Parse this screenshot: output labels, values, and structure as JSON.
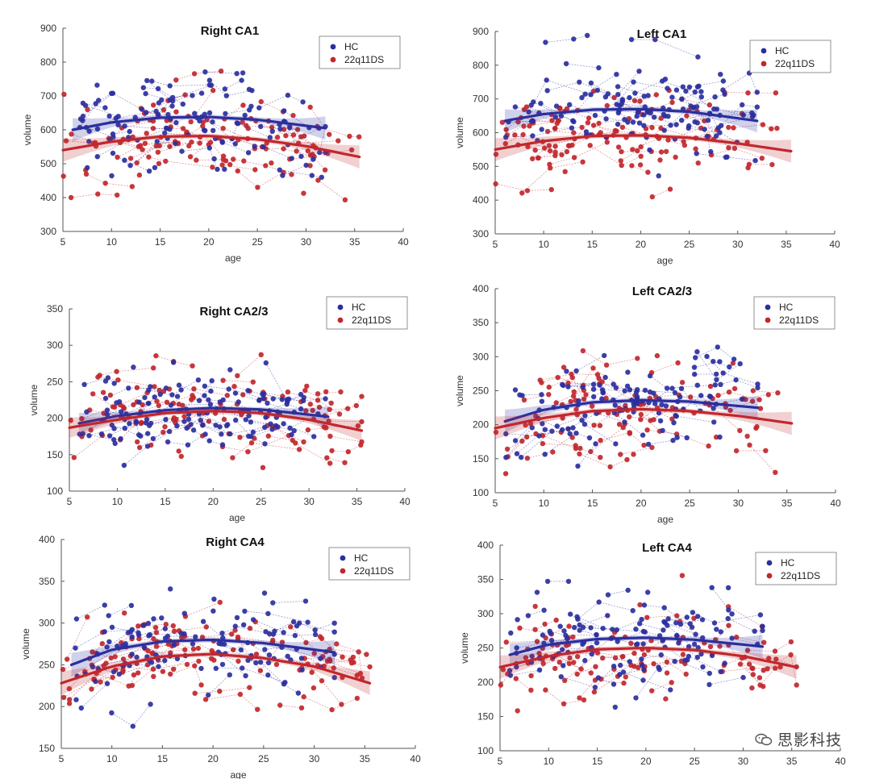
{
  "colors": {
    "HC": "#2b2f9e",
    "22q11DS": "#c1272d",
    "axis": "#555555"
  },
  "watermark": "思影科技",
  "chart_data": [
    {
      "type": "scatter",
      "title": "Right CA1",
      "xlabel": "age",
      "ylabel": "volume",
      "xlim": [
        5,
        40
      ],
      "ylim": [
        300,
        900
      ],
      "xticks": [
        "5",
        "10",
        "15",
        "20",
        "25",
        "30",
        "35",
        "40"
      ],
      "yticks": [
        "300",
        "400",
        "500",
        "600",
        "700",
        "800",
        "900"
      ],
      "legend": [
        "HC",
        "22q11DS"
      ],
      "legend_position": "top-right",
      "series": [
        {
          "name": "HC",
          "fit": {
            "x": [
              6,
              10,
              15,
              20,
              25,
              32
            ],
            "y": [
              600,
              622,
              636,
              638,
              630,
              605
            ]
          }
        },
        {
          "name": "22q11DS",
          "fit": {
            "x": [
              5,
              10,
              15,
              20,
              25,
              30,
              35.5
            ],
            "y": [
              540,
              565,
              580,
              582,
              572,
              552,
              520
            ]
          }
        }
      ]
    },
    {
      "type": "scatter",
      "title": "Left CA1",
      "xlabel": "age",
      "ylabel": "volume",
      "xlim": [
        5,
        40
      ],
      "ylim": [
        300,
        900
      ],
      "xticks": [
        "5",
        "10",
        "15",
        "20",
        "25",
        "30",
        "35",
        "40"
      ],
      "yticks": [
        "300",
        "400",
        "500",
        "600",
        "700",
        "800",
        "900"
      ],
      "legend": [
        "HC",
        "22q11DS"
      ],
      "legend_position": "top-right",
      "series": [
        {
          "name": "HC",
          "fit": {
            "x": [
              6,
              10,
              15,
              20,
              25,
              32
            ],
            "y": [
              635,
              655,
              668,
              670,
              662,
              635
            ]
          }
        },
        {
          "name": "22q11DS",
          "fit": {
            "x": [
              5,
              10,
              15,
              20,
              25,
              30,
              35.5
            ],
            "y": [
              550,
              575,
              590,
              592,
              585,
              568,
              545
            ]
          }
        }
      ]
    },
    {
      "type": "scatter",
      "title": "Right CA2/3",
      "xlabel": "age",
      "ylabel": "volume",
      "xlim": [
        5,
        40
      ],
      "ylim": [
        100,
        350
      ],
      "xticks": [
        "5",
        "10",
        "15",
        "20",
        "25",
        "30",
        "35",
        "40"
      ],
      "yticks": [
        "100",
        "150",
        "200",
        "250",
        "300",
        "350"
      ],
      "legend": [
        "HC",
        "22q11DS"
      ],
      "legend_position": "top-right",
      "series": [
        {
          "name": "HC",
          "fit": {
            "x": [
              6,
              10,
              15,
              20,
              25,
              32
            ],
            "y": [
              193,
              203,
              211,
              214,
              212,
              202
            ]
          }
        },
        {
          "name": "22q11DS",
          "fit": {
            "x": [
              5,
              10,
              15,
              20,
              25,
              30,
              35.5
            ],
            "y": [
              187,
              198,
              207,
              210,
              207,
              198,
              183
            ]
          }
        }
      ]
    },
    {
      "type": "scatter",
      "title": "Left CA2/3",
      "xlabel": "age",
      "ylabel": "volume",
      "xlim": [
        5,
        40
      ],
      "ylim": [
        100,
        400
      ],
      "xticks": [
        "5",
        "10",
        "15",
        "20",
        "25",
        "30",
        "35",
        "40"
      ],
      "yticks": [
        "100",
        "150",
        "200",
        "250",
        "300",
        "350",
        "400"
      ],
      "legend": [
        "HC",
        "22q11DS"
      ],
      "legend_position": "top-right",
      "series": [
        {
          "name": "HC",
          "fit": {
            "x": [
              6,
              10,
              15,
              20,
              25,
              32
            ],
            "y": [
              205,
              222,
              233,
              236,
              234,
              225
            ]
          }
        },
        {
          "name": "22q11DS",
          "fit": {
            "x": [
              5,
              10,
              15,
              20,
              25,
              30,
              35.5
            ],
            "y": [
              195,
              210,
              220,
              223,
              220,
              213,
              202
            ]
          }
        }
      ]
    },
    {
      "type": "scatter",
      "title": "Right CA4",
      "xlabel": "age",
      "ylabel": "volume",
      "xlim": [
        5,
        40
      ],
      "ylim": [
        150,
        400
      ],
      "xticks": [
        "5",
        "10",
        "15",
        "20",
        "25",
        "30",
        "35",
        "40"
      ],
      "yticks": [
        "150",
        "200",
        "250",
        "300",
        "350",
        "400"
      ],
      "legend": [
        "HC",
        "22q11DS"
      ],
      "legend_position": "top-right",
      "series": [
        {
          "name": "HC",
          "fit": {
            "x": [
              6,
              10,
              15,
              20,
              25,
              32
            ],
            "y": [
              250,
              268,
              278,
              280,
              276,
              265
            ]
          }
        },
        {
          "name": "22q11DS",
          "fit": {
            "x": [
              5,
              10,
              15,
              20,
              25,
              30,
              35.5
            ],
            "y": [
              228,
              248,
              260,
              263,
              258,
              248,
              228
            ]
          }
        }
      ]
    },
    {
      "type": "scatter",
      "title": "Left CA4",
      "xlabel": "",
      "ylabel": "volume",
      "xlim": [
        5,
        40
      ],
      "ylim": [
        100,
        400
      ],
      "xticks": [
        "5",
        "10",
        "15",
        "20",
        "25",
        "30",
        "35",
        "40"
      ],
      "yticks": [
        "100",
        "150",
        "200",
        "250",
        "300",
        "350",
        "400"
      ],
      "legend": [
        "HC",
        "22q11DS"
      ],
      "legend_position": "top-right",
      "series": [
        {
          "name": "HC",
          "fit": {
            "x": [
              6,
              10,
              15,
              20,
              25,
              32
            ],
            "y": [
              240,
              255,
              263,
              265,
              262,
              252
            ]
          }
        },
        {
          "name": "22q11DS",
          "fit": {
            "x": [
              5,
              10,
              15,
              20,
              25,
              30,
              35.5
            ],
            "y": [
              222,
              238,
              248,
              250,
              247,
              238,
              222
            ]
          }
        }
      ]
    }
  ]
}
